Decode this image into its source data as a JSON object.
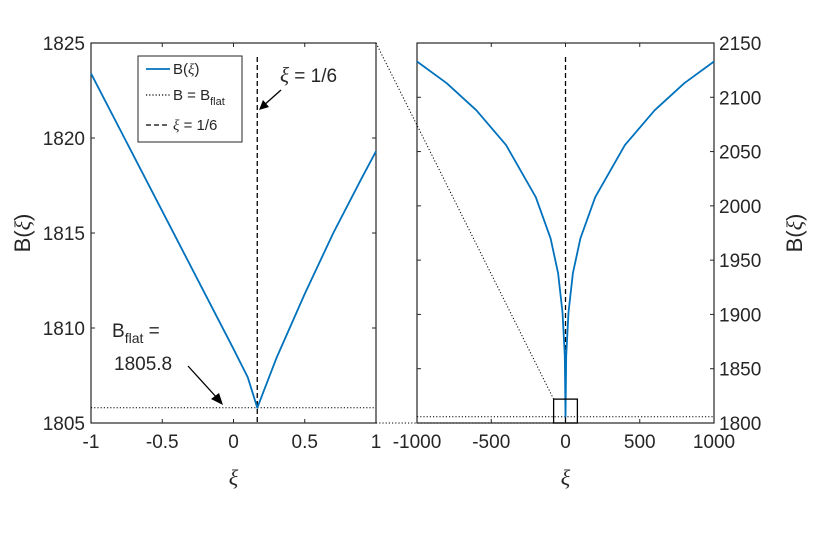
{
  "chart_data": [
    {
      "type": "line",
      "panel": "left",
      "xlim": [
        -1,
        1
      ],
      "ylim": [
        1805,
        1825
      ],
      "xticks": [
        -1,
        -0.5,
        0,
        0.5,
        1
      ],
      "xtick_labels": [
        "-1",
        "-0.5",
        "0",
        "0.5",
        "1"
      ],
      "yticks": [
        1805,
        1810,
        1815,
        1820,
        1825
      ],
      "ytick_labels": [
        "1805",
        "1810",
        "1815",
        "1820",
        "1825"
      ],
      "xlabel": "ξ",
      "ylabel_prefix": "B(",
      "ylabel_var": "ξ",
      "ylabel_suffix": ")",
      "series": [
        {
          "name": "B(ξ)",
          "style": "solid",
          "color": "#0072BD",
          "x": [
            -1,
            -0.8,
            -0.6,
            -0.4,
            -0.2,
            0,
            0.1,
            0.1667,
            0.3,
            0.5,
            0.7,
            0.9,
            1
          ],
          "y": [
            1823.4,
            1820.5,
            1817.6,
            1814.7,
            1811.8,
            1808.9,
            1807.4,
            1805.8,
            1808.4,
            1811.8,
            1815.0,
            1817.9,
            1819.3
          ]
        }
      ],
      "flat_y": 1805.8,
      "vline_x": 0.1667,
      "legend": {
        "position": "top-left",
        "entries": [
          {
            "style": "solid",
            "color": "#0072BD",
            "prefix": "B(",
            "var": "ξ",
            "suffix": ")"
          },
          {
            "style": "dotted",
            "color": "#000000",
            "main": "B = B",
            "sub": "flat"
          },
          {
            "style": "dashed",
            "color": "#000000",
            "var": "ξ",
            "suffix": " = 1/6"
          }
        ]
      },
      "annotations": [
        {
          "id": "vline-label",
          "var": "ξ",
          "text": " = 1/6"
        },
        {
          "id": "bflat-label",
          "main": "B",
          "sub": "flat",
          "eq": " =",
          "value": "1805.8"
        }
      ]
    },
    {
      "type": "line",
      "panel": "right",
      "xlim": [
        -1000,
        1000
      ],
      "ylim": [
        1800,
        2150
      ],
      "xticks": [
        -1000,
        -500,
        0,
        500,
        1000
      ],
      "xtick_labels": [
        "-1000",
        "-500",
        "0",
        "500",
        "1000"
      ],
      "yticks": [
        1800,
        1850,
        1900,
        1950,
        2000,
        2050,
        2100,
        2150
      ],
      "ytick_labels": [
        "1800",
        "1850",
        "1900",
        "1950",
        "2000",
        "2050",
        "2100",
        "2150"
      ],
      "xlabel": "ξ",
      "ylabel_prefix": "B(",
      "ylabel_var": "ξ",
      "ylabel_suffix": ")",
      "series": [
        {
          "name": "B(ξ)",
          "style": "solid",
          "color": "#0072BD",
          "x": [
            -1000,
            -800,
            -600,
            -400,
            -200,
            -100,
            -50,
            -20,
            -5,
            0,
            5,
            20,
            50,
            100,
            200,
            400,
            600,
            800,
            1000
          ],
          "y": [
            2133,
            2113,
            2088,
            2056,
            2008,
            1970,
            1938,
            1902,
            1862,
            1806,
            1862,
            1902,
            1938,
            1970,
            2008,
            2056,
            2088,
            2113,
            2133
          ]
        }
      ],
      "flat_y": 1805.8,
      "vline_x": 0,
      "zoom_box": {
        "x": [
          -80,
          80
        ],
        "y": [
          1800,
          1822
        ]
      }
    }
  ]
}
